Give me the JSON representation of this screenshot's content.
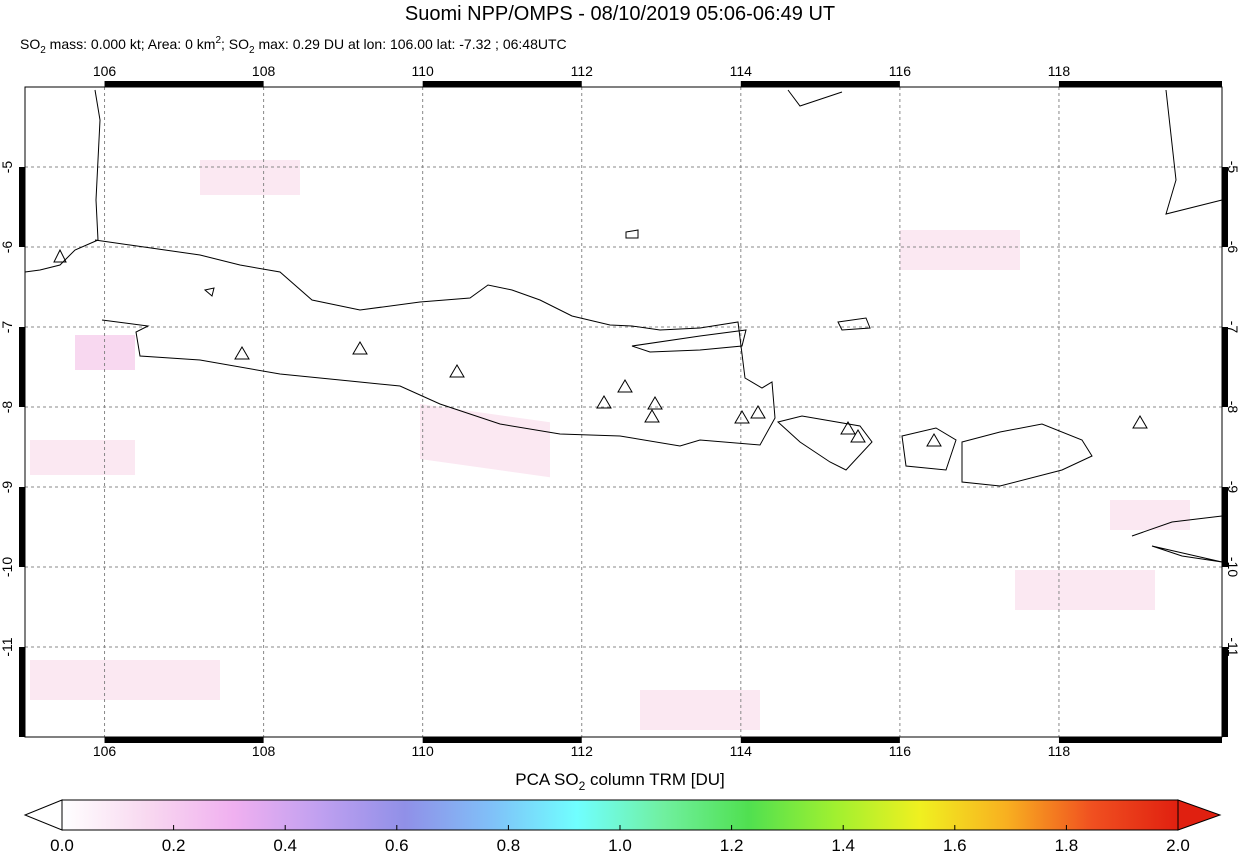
{
  "chart_data": {
    "type": "map",
    "title": "Suomi NPP/OMPS - 08/10/2019 05:06-06:49 UT",
    "subtitle_parts": [
      "SO",
      "2",
      " mass: 0.000 kt; Area: 0 km",
      "2",
      "; SO",
      "2",
      " max: 0.29 DU at lon: 106.00 lat: -7.32 ; 06:48UTC"
    ],
    "xlim": [
      105,
      120.05
    ],
    "ylim": [
      -12.125,
      -4
    ],
    "xticks": [
      106,
      108,
      110,
      112,
      114,
      116,
      118
    ],
    "yticks": [
      -5,
      -6,
      -7,
      -8,
      -9,
      -10,
      -11
    ],
    "grid": true,
    "colorbar": {
      "label_parts": [
        "PCA SO",
        "2",
        " column TRM [DU]"
      ],
      "lim": [
        0,
        2
      ],
      "ticks": [
        {
          "value": 0,
          "label": "0.0"
        },
        {
          "value": 0.2,
          "label": "0.2"
        },
        {
          "value": 0.4,
          "label": "0.4"
        },
        {
          "value": 0.6,
          "label": "0.6"
        },
        {
          "value": 0.8,
          "label": "0.8"
        },
        {
          "value": 1,
          "label": "1.0"
        },
        {
          "value": 1.2,
          "label": "1.2"
        },
        {
          "value": 1.4,
          "label": "1.4"
        },
        {
          "value": 1.6,
          "label": "1.6"
        },
        {
          "value": 1.8,
          "label": "1.8"
        },
        {
          "value": 2,
          "label": "2.0"
        }
      ],
      "colors": [
        "#ffffff",
        "#f8d8f0",
        "#f0b0f0",
        "#c0a0f0",
        "#9090e8",
        "#80c0f8",
        "#70ffff",
        "#70f0a0",
        "#50e050",
        "#a0f030",
        "#f0f020",
        "#f8b020",
        "#f05020",
        "#e02010"
      ]
    }
  }
}
